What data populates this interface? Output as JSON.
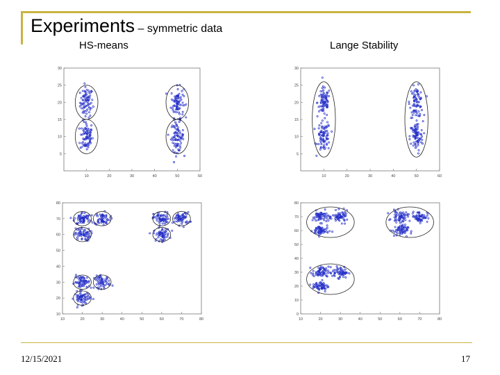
{
  "slide": {
    "title": "Experiments",
    "subtitle": "– symmetric data",
    "col_left_label": "HS-means",
    "col_right_label": "Lange Stability",
    "date": "12/15/2021",
    "page_number": "17",
    "accent_color": "#c9b33f",
    "point_color": "#2630c8"
  },
  "chart_data": [
    {
      "type": "scatter",
      "name": "top-left",
      "xlim": [
        0,
        60
      ],
      "ylim": [
        0,
        30
      ],
      "xticks": [
        10,
        20,
        30,
        40,
        50,
        60
      ],
      "yticks": [
        5,
        10,
        15,
        20,
        25,
        30
      ],
      "clusters": [
        {
          "center": [
            10,
            20
          ],
          "spread": [
            1.4,
            2.2
          ],
          "n": 80
        },
        {
          "center": [
            10,
            10
          ],
          "spread": [
            1.4,
            2.2
          ],
          "n": 80
        },
        {
          "center": [
            50,
            20
          ],
          "spread": [
            1.4,
            2.2
          ],
          "n": 80
        },
        {
          "center": [
            50,
            10
          ],
          "spread": [
            1.4,
            2.2
          ],
          "n": 80
        }
      ],
      "ellipses": [
        {
          "center": [
            10,
            20
          ],
          "radius": [
            5,
            5
          ]
        },
        {
          "center": [
            10,
            10
          ],
          "radius": [
            5,
            5
          ]
        },
        {
          "center": [
            50,
            20
          ],
          "radius": [
            5,
            5
          ]
        },
        {
          "center": [
            50,
            10
          ],
          "radius": [
            5,
            5
          ]
        }
      ]
    },
    {
      "type": "scatter",
      "name": "top-right",
      "xlim": [
        0,
        60
      ],
      "ylim": [
        0,
        30
      ],
      "xticks": [
        10,
        20,
        30,
        40,
        50,
        60
      ],
      "yticks": [
        5,
        10,
        15,
        20,
        25,
        30
      ],
      "clusters": [
        {
          "center": [
            10,
            20
          ],
          "spread": [
            1.4,
            2.2
          ],
          "n": 80
        },
        {
          "center": [
            10,
            10
          ],
          "spread": [
            1.4,
            2.2
          ],
          "n": 80
        },
        {
          "center": [
            50,
            20
          ],
          "spread": [
            1.4,
            2.2
          ],
          "n": 80
        },
        {
          "center": [
            50,
            10
          ],
          "spread": [
            1.4,
            2.2
          ],
          "n": 80
        }
      ],
      "ellipses": [
        {
          "center": [
            10,
            15
          ],
          "radius": [
            5,
            11
          ]
        },
        {
          "center": [
            50,
            15
          ],
          "radius": [
            5,
            11
          ]
        }
      ]
    },
    {
      "type": "scatter",
      "name": "bottom-left",
      "xlim": [
        10,
        80
      ],
      "ylim": [
        10,
        80
      ],
      "xticks": [
        10,
        20,
        30,
        40,
        50,
        60,
        70,
        80
      ],
      "yticks": [
        10,
        20,
        30,
        40,
        50,
        60,
        70,
        80
      ],
      "clusters": [
        {
          "center": [
            20,
            70
          ],
          "spread": [
            2,
            2
          ],
          "n": 60
        },
        {
          "center": [
            30,
            70
          ],
          "spread": [
            2,
            2
          ],
          "n": 60
        },
        {
          "center": [
            20,
            60
          ],
          "spread": [
            2,
            2
          ],
          "n": 60
        },
        {
          "center": [
            60,
            70
          ],
          "spread": [
            2,
            2
          ],
          "n": 60
        },
        {
          "center": [
            70,
            70
          ],
          "spread": [
            2,
            2
          ],
          "n": 60
        },
        {
          "center": [
            60,
            60
          ],
          "spread": [
            2,
            2
          ],
          "n": 60
        },
        {
          "center": [
            20,
            30
          ],
          "spread": [
            2,
            2
          ],
          "n": 60
        },
        {
          "center": [
            30,
            30
          ],
          "spread": [
            2,
            2
          ],
          "n": 60
        },
        {
          "center": [
            20,
            20
          ],
          "spread": [
            2,
            2
          ],
          "n": 60
        }
      ],
      "ellipses": [
        {
          "center": [
            20,
            70
          ],
          "radius": [
            4.5,
            4.5
          ]
        },
        {
          "center": [
            30,
            70
          ],
          "radius": [
            4.5,
            4.5
          ]
        },
        {
          "center": [
            20,
            60
          ],
          "radius": [
            4.5,
            4.5
          ]
        },
        {
          "center": [
            60,
            70
          ],
          "radius": [
            4.5,
            4.5
          ]
        },
        {
          "center": [
            70,
            70
          ],
          "radius": [
            4.5,
            4.5
          ]
        },
        {
          "center": [
            60,
            60
          ],
          "radius": [
            4.5,
            4.5
          ]
        },
        {
          "center": [
            20,
            30
          ],
          "radius": [
            4.5,
            4.5
          ]
        },
        {
          "center": [
            30,
            30
          ],
          "radius": [
            4.5,
            4.5
          ]
        },
        {
          "center": [
            20,
            20
          ],
          "radius": [
            4.5,
            4.5
          ]
        }
      ]
    },
    {
      "type": "scatter",
      "name": "bottom-right",
      "xlim": [
        10,
        80
      ],
      "ylim": [
        0,
        80
      ],
      "xticks": [
        10,
        20,
        30,
        40,
        50,
        60,
        70,
        80
      ],
      "yticks": [
        0,
        10,
        20,
        30,
        40,
        50,
        60,
        70,
        80
      ],
      "clusters": [
        {
          "center": [
            20,
            70
          ],
          "spread": [
            2,
            2
          ],
          "n": 60
        },
        {
          "center": [
            30,
            70
          ],
          "spread": [
            2,
            2
          ],
          "n": 60
        },
        {
          "center": [
            20,
            60
          ],
          "spread": [
            2,
            2
          ],
          "n": 60
        },
        {
          "center": [
            60,
            70
          ],
          "spread": [
            2,
            2
          ],
          "n": 60
        },
        {
          "center": [
            70,
            70
          ],
          "spread": [
            2,
            2
          ],
          "n": 60
        },
        {
          "center": [
            60,
            60
          ],
          "spread": [
            2,
            2
          ],
          "n": 60
        },
        {
          "center": [
            20,
            30
          ],
          "spread": [
            2,
            2
          ],
          "n": 60
        },
        {
          "center": [
            30,
            30
          ],
          "spread": [
            2,
            2
          ],
          "n": 60
        },
        {
          "center": [
            20,
            20
          ],
          "spread": [
            2,
            2
          ],
          "n": 60
        }
      ],
      "ellipses": [
        {
          "center": [
            25,
            66
          ],
          "radius": [
            12,
            11
          ]
        },
        {
          "center": [
            65,
            66
          ],
          "radius": [
            12,
            11
          ]
        },
        {
          "center": [
            25,
            25
          ],
          "radius": [
            12,
            11
          ]
        }
      ]
    }
  ]
}
